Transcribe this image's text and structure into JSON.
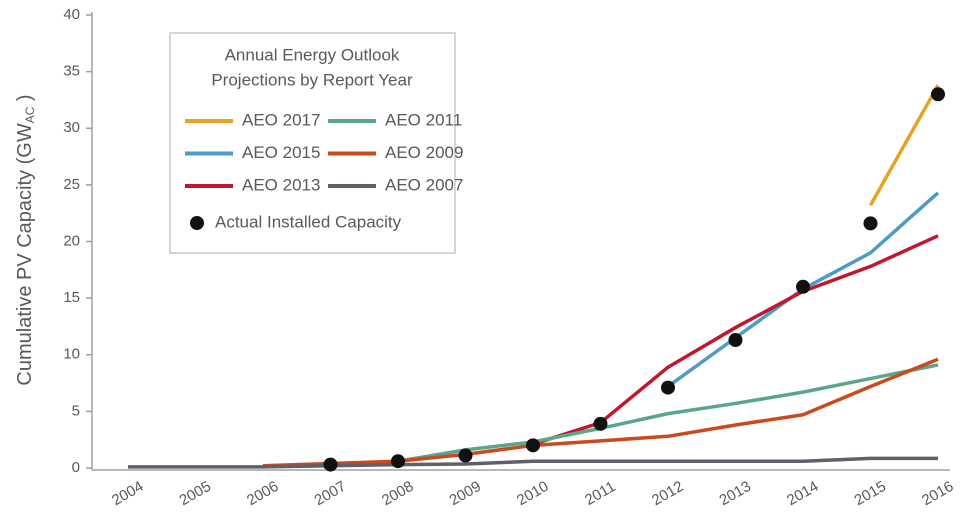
{
  "chart_data": {
    "type": "line",
    "ylabel": [
      "Cumulative PV Capacity (GW",
      "AC",
      " )"
    ],
    "legend_title": [
      "Annual Energy Outlook",
      "Projections by Report Year"
    ],
    "categories": [
      "2004",
      "2005",
      "2006",
      "2007",
      "2008",
      "2009",
      "2010",
      "2011",
      "2012",
      "2013",
      "2014",
      "2015",
      "2016"
    ],
    "ylim": [
      0,
      40
    ],
    "yticks": [
      0,
      5,
      10,
      15,
      20,
      25,
      30,
      35,
      40
    ],
    "series": [
      {
        "name": "AEO 2017",
        "color": "#e5a323",
        "values": [
          null,
          null,
          null,
          null,
          null,
          null,
          null,
          null,
          null,
          null,
          null,
          23.2,
          33.8
        ]
      },
      {
        "name": "AEO 2015",
        "color": "#4f9ac6",
        "values": [
          null,
          null,
          null,
          null,
          null,
          null,
          null,
          null,
          7.2,
          11.5,
          15.8,
          19.0,
          24.3
        ]
      },
      {
        "name": "AEO 2013",
        "color": "#c0172f",
        "values": [
          null,
          null,
          null,
          null,
          null,
          null,
          2.1,
          4.0,
          8.9,
          12.4,
          15.6,
          17.8,
          20.5
        ]
      },
      {
        "name": "AEO 2011",
        "color": "#5aa68a",
        "values": [
          null,
          null,
          null,
          null,
          0.6,
          1.6,
          2.3,
          3.5,
          4.8,
          5.7,
          6.7,
          7.9,
          9.1
        ]
      },
      {
        "name": "AEO 2009",
        "color": "#c94a1e",
        "values": [
          null,
          null,
          0.2,
          0.4,
          0.6,
          1.2,
          2.0,
          2.4,
          2.8,
          3.8,
          4.7,
          7.2,
          9.6
        ]
      },
      {
        "name": "AEO 2007",
        "color": "#5e6069",
        "values": [
          0.1,
          0.1,
          0.1,
          0.2,
          0.3,
          0.35,
          0.6,
          0.6,
          0.6,
          0.6,
          0.6,
          0.85,
          0.85
        ]
      },
      {
        "name": "Actual Installed Capacity",
        "color": "#111111",
        "mode": "markers",
        "values": [
          null,
          null,
          null,
          0.3,
          0.6,
          1.1,
          2.0,
          3.9,
          7.1,
          11.3,
          16.0,
          21.6,
          33.0
        ]
      }
    ]
  }
}
